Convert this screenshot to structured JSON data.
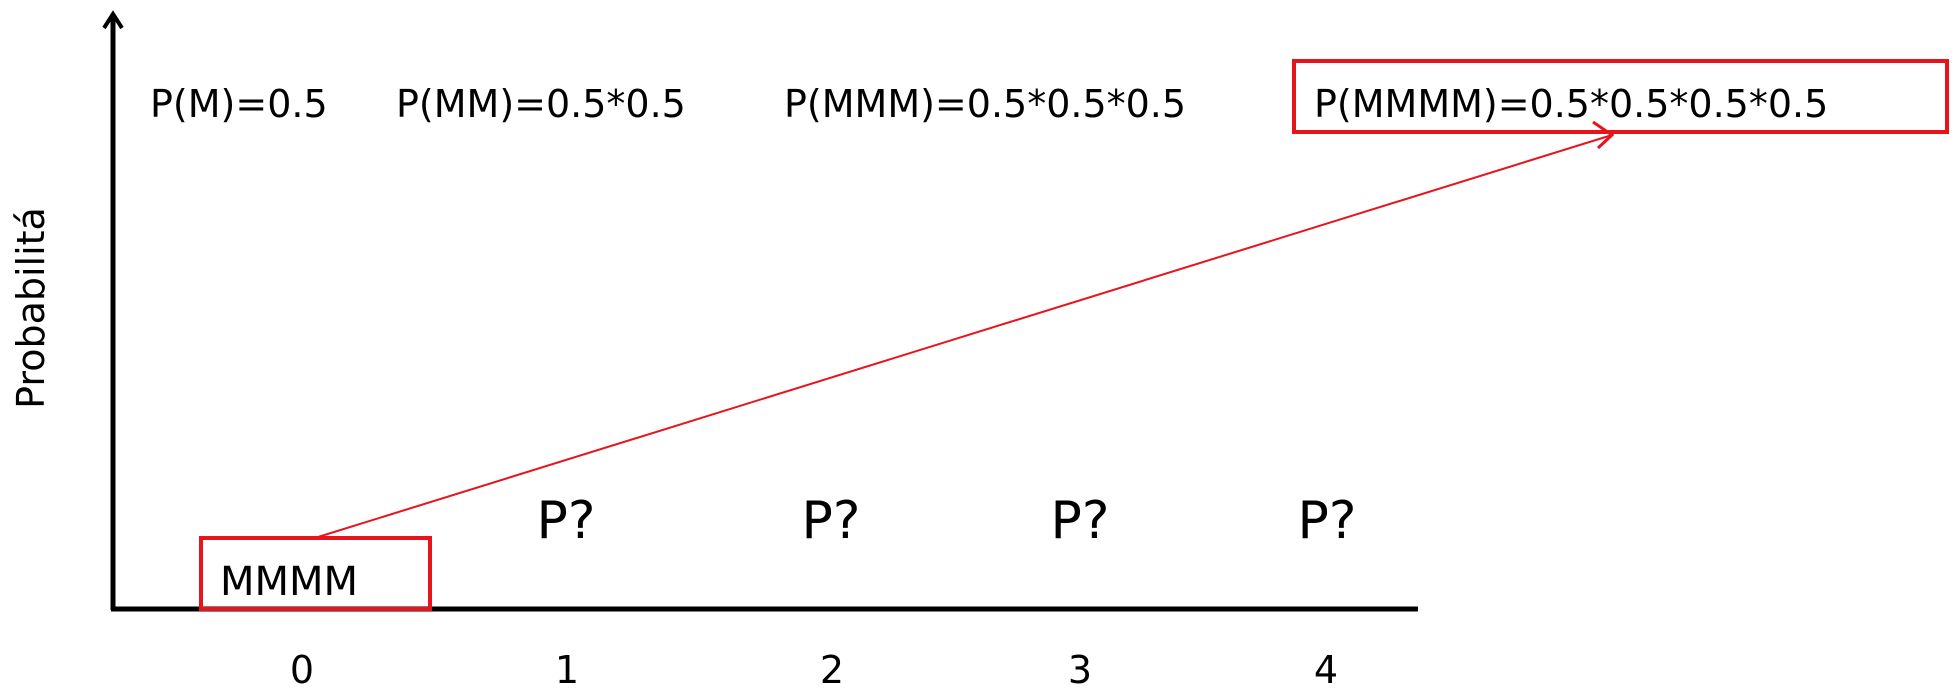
{
  "y_axis_label": "Probabilitá",
  "formulas": [
    "P(M)=0.5",
    "P(MM)=0.5*0.5",
    "P(MMM)=0.5*0.5*0.5",
    "P(MMMM)=0.5*0.5*0.5*0.5"
  ],
  "unknown_labels": [
    "P?",
    "P?",
    "P?",
    "P?"
  ],
  "x_ticks": [
    "0",
    "1",
    "2",
    "3",
    "4"
  ],
  "outcome_label": "MMMM",
  "highlight_color": "#e8141c",
  "axis_color": "#000000"
}
